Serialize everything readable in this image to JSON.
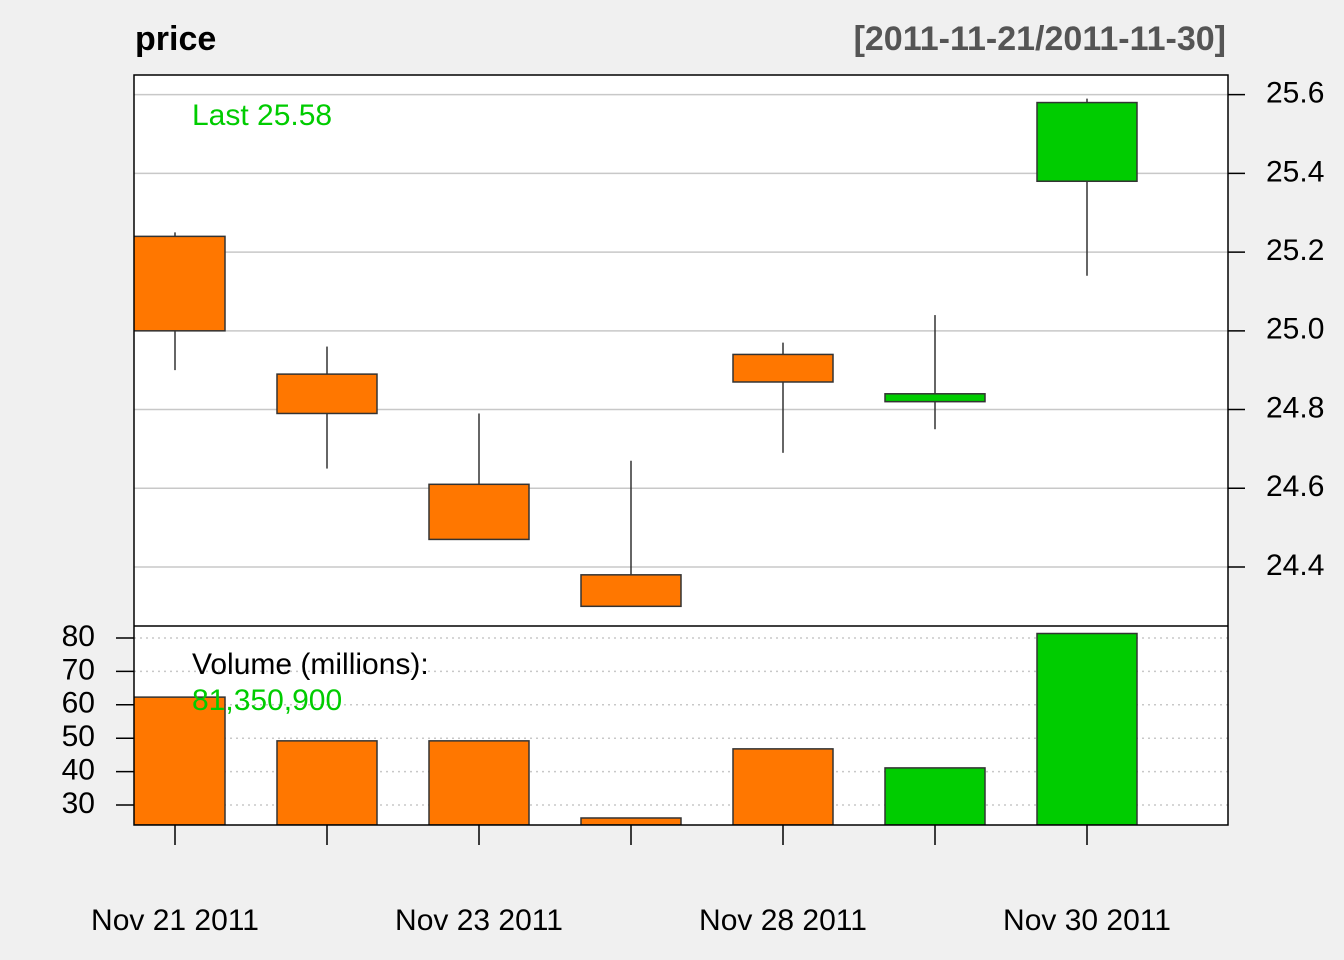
{
  "chart_data": {
    "type": "candlestick",
    "title": "price",
    "subtitle": "[2011-11-21/2011-11-30]",
    "categories": [
      "Nov 21 2011",
      null,
      "Nov 23 2011",
      null,
      "Nov 28 2011",
      null,
      "Nov 30 2011"
    ],
    "open": [
      25.24,
      24.89,
      24.61,
      24.38,
      24.94,
      24.82,
      25.38
    ],
    "high": [
      25.25,
      24.96,
      24.79,
      24.67,
      24.97,
      25.04,
      25.59
    ],
    "low": [
      24.9,
      24.65,
      24.47,
      24.3,
      24.69,
      24.75,
      25.14
    ],
    "close": [
      25.0,
      24.79,
      24.47,
      24.3,
      24.87,
      24.84,
      25.58
    ],
    "up_color": "#00cc00",
    "down_color": "#ff7700",
    "ylim": [
      24.25,
      25.65
    ],
    "yticks": [
      24.4,
      24.6,
      24.8,
      {
        "value": 25,
        "label": "25.0"
      },
      25.2,
      25.4,
      25.6
    ],
    "grid": true,
    "annotation": "Last 25.58",
    "volume": {
      "label": "Volume (millions):",
      "annotation": "81,350,900",
      "values": [
        62.3,
        49.2,
        49.2,
        26.1,
        46.8,
        41.1,
        81.3509
      ],
      "ylim": [
        24,
        83.6
      ],
      "yticks": [
        30,
        40,
        50,
        60,
        70,
        80
      ],
      "grid": true
    }
  }
}
